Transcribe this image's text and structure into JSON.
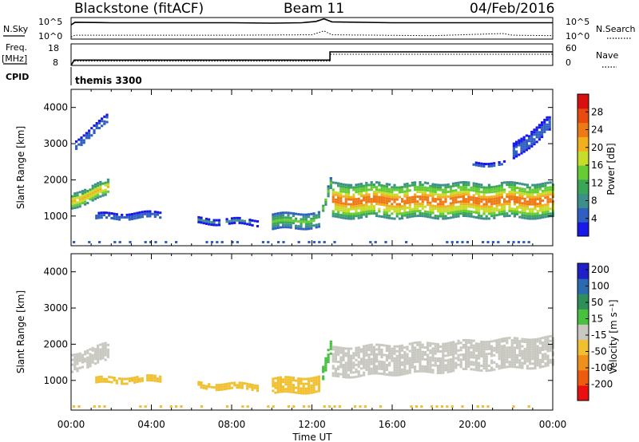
{
  "header": {
    "station": "Blackstone (fitACF)",
    "beam": "Beam 11",
    "date": "04/Feb/2016"
  },
  "labels": {
    "nsky": "N.Sky",
    "nsearch": "N.Search",
    "freq": "Freq.",
    "freq_unit": "[MHz]",
    "nave": "Nave",
    "cpid": "CPID",
    "cpid_value": "themis 3300",
    "nsky_tick_hi": "10^5",
    "nsky_tick_lo": "10^0",
    "freq_tick_hi": "18",
    "freq_tick_lo": "8",
    "nave_tick_hi": "60",
    "nave_tick_lo": "0"
  },
  "chart_data": [
    {
      "type": "line",
      "panel": "noise",
      "x_unit": "hours UT",
      "series": [
        {
          "name": "N.Sky",
          "style": "solid",
          "x": [
            0,
            0.2,
            2,
            4,
            6,
            8,
            10,
            11.5,
            12.2,
            12.6,
            13,
            16,
            20,
            24
          ],
          "y": [
            3.3,
            3.9,
            3.8,
            3.8,
            3.8,
            3.8,
            3.7,
            3.8,
            4.1,
            4.7,
            4.0,
            3.8,
            3.8,
            3.8
          ]
        },
        {
          "name": "N.Search",
          "style": "dotted",
          "x": [
            0,
            0.2,
            2,
            8,
            12,
            12.6,
            13,
            18,
            21.5,
            22,
            24
          ],
          "y": [
            0.5,
            0.9,
            0.9,
            0.9,
            1.0,
            1.9,
            1.0,
            0.8,
            1.3,
            0.9,
            0.8
          ]
        }
      ]
    },
    {
      "type": "line",
      "panel": "frequency",
      "x_unit": "hours UT",
      "series": [
        {
          "name": "Freq.",
          "style": "solid",
          "x": [
            0,
            0.15,
            12.9,
            12.9,
            24
          ],
          "y": [
            8,
            10.5,
            10.5,
            14.3,
            14.3
          ]
        },
        {
          "name": "Nave",
          "style": "dotted",
          "x": [
            0,
            0.15,
            12.9,
            12.9,
            24
          ],
          "y": [
            0,
            12,
            12,
            31,
            31
          ]
        }
      ]
    },
    {
      "type": "heatmap",
      "panel": "power",
      "ylabel": "Slant Range [km]",
      "xlim": [
        0,
        24
      ],
      "ylim": [
        180,
        4500
      ],
      "yticks": [
        1000,
        2000,
        3000,
        4000
      ],
      "colorbar": {
        "label": "Power [dB]",
        "ticks": [
          "4",
          "8",
          "12",
          "16",
          "20",
          "24",
          "28"
        ],
        "range": [
          0,
          32
        ],
        "colors": [
          "#1818e8",
          "#2f5fc0",
          "#3c8f8a",
          "#3aa757",
          "#66cc33",
          "#c8dc2a",
          "#f2b01c",
          "#ee7a16",
          "#e84a10",
          "#d81010"
        ]
      },
      "bands": [
        {
          "x": [
            0,
            1.8
          ],
          "y_center": [
            1450,
            1800
          ],
          "width": 420,
          "peak_db": 22
        },
        {
          "x": [
            1.2,
            4.4
          ],
          "y_center": [
            1000,
            1050
          ],
          "width": 160,
          "peak_db": 7
        },
        {
          "x": [
            6.3,
            9.3
          ],
          "y_center": [
            900,
            850
          ],
          "width": 140,
          "peak_db": 7
        },
        {
          "x": [
            10,
            12.4
          ],
          "y_center": [
            860,
            920
          ],
          "width": 420,
          "peak_db": 14
        },
        {
          "x": [
            12.5,
            13
          ],
          "y_center": [
            1200,
            2100
          ],
          "width": 300,
          "peak_db": 16
        },
        {
          "x": [
            13,
            24
          ],
          "y_center": [
            1450,
            1450
          ],
          "width": 950,
          "peak_db": 26
        },
        {
          "x": [
            0.2,
            1.8
          ],
          "y_center": [
            3000,
            3700
          ],
          "width": 250,
          "peak_db": 6
        },
        {
          "x": [
            20,
            21.6
          ],
          "y_center": [
            2450,
            2450
          ],
          "width": 120,
          "peak_db": 6
        },
        {
          "x": [
            22,
            23.8
          ],
          "y_center": [
            2800,
            3600
          ],
          "width": 400,
          "peak_db": 6
        }
      ]
    },
    {
      "type": "heatmap",
      "panel": "velocity",
      "xlabel": "Time UT",
      "ylabel": "Slant Range [km]",
      "xlim": [
        0,
        24
      ],
      "ylim": [
        180,
        4500
      ],
      "yticks": [
        1000,
        2000,
        3000,
        4000
      ],
      "xticks": [
        "00:00",
        "04:00",
        "08:00",
        "12:00",
        "16:00",
        "20:00",
        "00:00"
      ],
      "colorbar": {
        "label": "Velocity [m s⁻¹]",
        "ticks": [
          "200",
          "100",
          "50",
          "15",
          "-15",
          "-50",
          "-100",
          "-200"
        ],
        "colors": [
          "#2020c8",
          "#2a6ab0",
          "#2f8f5a",
          "#48c040",
          "#c8c8c0",
          "#f0c030",
          "#f0901c",
          "#ee5a10",
          "#e81010"
        ]
      },
      "bands": [
        {
          "x": [
            0,
            1.8
          ],
          "y_center": [
            1500,
            1800
          ],
          "width": 500,
          "color_index": 4
        },
        {
          "x": [
            1.2,
            4.4
          ],
          "y_center": [
            1000,
            1050
          ],
          "width": 180,
          "color_index": 5
        },
        {
          "x": [
            6.3,
            9.3
          ],
          "y_center": [
            880,
            840
          ],
          "width": 150,
          "color_index": 5
        },
        {
          "x": [
            10,
            12.4
          ],
          "y_center": [
            860,
            920
          ],
          "width": 420,
          "color_index": 5
        },
        {
          "x": [
            12.5,
            13
          ],
          "y_center": [
            1200,
            2100
          ],
          "width": 350,
          "color_index": 3
        },
        {
          "x": [
            13,
            24
          ],
          "y_center": [
            1500,
            1800
          ],
          "width": 850,
          "color_index": 4
        }
      ]
    }
  ]
}
